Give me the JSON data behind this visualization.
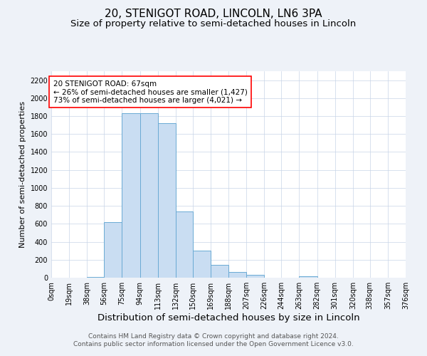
{
  "title": "20, STENIGOT ROAD, LINCOLN, LN6 3PA",
  "subtitle": "Size of property relative to semi-detached houses in Lincoln",
  "xlabel": "Distribution of semi-detached houses by size in Lincoln",
  "ylabel": "Number of semi-detached properties",
  "bar_values": [
    0,
    0,
    5,
    620,
    1830,
    1830,
    1720,
    735,
    300,
    140,
    60,
    35,
    0,
    0,
    15,
    0,
    0,
    0,
    0,
    0
  ],
  "bin_edges": [
    0,
    19,
    38,
    56,
    75,
    94,
    113,
    132,
    150,
    169,
    188,
    207,
    226,
    244,
    263,
    282,
    301,
    320,
    338,
    357,
    376
  ],
  "tick_labels": [
    "0sqm",
    "19sqm",
    "38sqm",
    "56sqm",
    "75sqm",
    "94sqm",
    "113sqm",
    "132sqm",
    "150sqm",
    "169sqm",
    "188sqm",
    "207sqm",
    "226sqm",
    "244sqm",
    "263sqm",
    "282sqm",
    "301sqm",
    "320sqm",
    "338sqm",
    "357sqm",
    "376sqm"
  ],
  "bar_color": "#c9ddf2",
  "bar_edge_color": "#6aaad4",
  "annotation_text": "20 STENIGOT ROAD: 67sqm\n← 26% of semi-detached houses are smaller (1,427)\n73% of semi-detached houses are larger (4,021) →",
  "ylim": [
    0,
    2300
  ],
  "yticks": [
    0,
    200,
    400,
    600,
    800,
    1000,
    1200,
    1400,
    1600,
    1800,
    2000,
    2200
  ],
  "footer_text": "Contains HM Land Registry data © Crown copyright and database right 2024.\nContains public sector information licensed under the Open Government Licence v3.0.",
  "background_color": "#eef2f8",
  "plot_bg_color": "#ffffff",
  "grid_color": "#c8d4e8",
  "title_fontsize": 11,
  "subtitle_fontsize": 9.5,
  "xlabel_fontsize": 9.5,
  "ylabel_fontsize": 8,
  "tick_fontsize": 7,
  "annotation_fontsize": 7.5,
  "footer_fontsize": 6.5
}
